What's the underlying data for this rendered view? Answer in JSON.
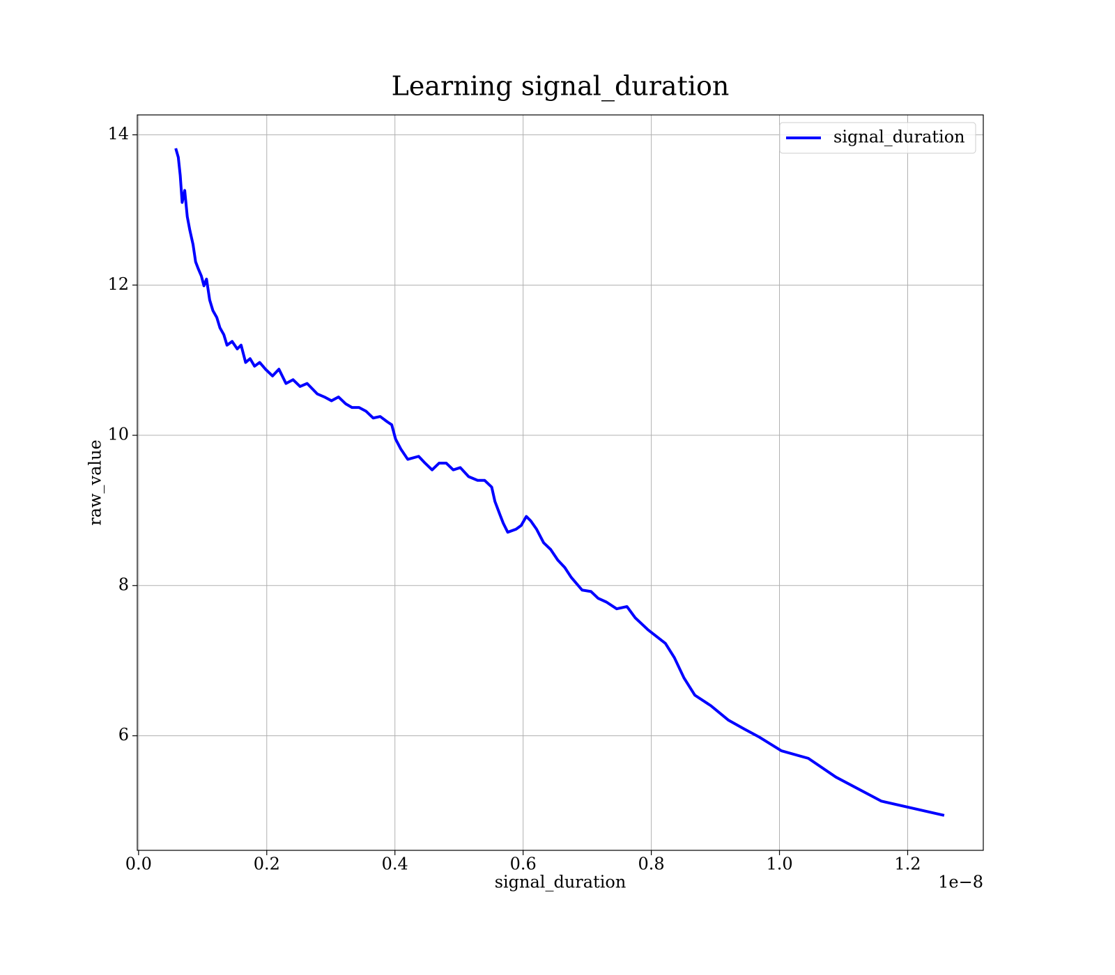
{
  "chart_data": {
    "type": "line",
    "title": "Learning signal_duration",
    "x_label": "signal_duration",
    "y_label": "raw_value",
    "x_offset_label": "1e−8",
    "xlim": [
      -0.002,
      1.318
    ],
    "ylim": [
      4.475,
      14.265
    ],
    "xticks": [
      {
        "value": 0,
        "label": "0.0"
      },
      0.2,
      0.4,
      0.6,
      0.8,
      {
        "value": 1,
        "label": "1.0"
      },
      1.2
    ],
    "yticks": [
      6,
      8,
      10,
      12,
      14
    ],
    "grid": true,
    "legend": "upper right",
    "x": [
      0.058,
      0.062,
      0.065,
      0.068,
      0.072,
      0.076,
      0.08,
      0.085,
      0.089,
      0.093,
      0.098,
      0.102,
      0.106,
      0.111,
      0.116,
      0.122,
      0.127,
      0.133,
      0.138,
      0.146,
      0.154,
      0.16,
      0.167,
      0.174,
      0.181,
      0.189,
      0.198,
      0.209,
      0.219,
      0.23,
      0.241,
      0.252,
      0.263,
      0.279,
      0.29,
      0.301,
      0.312,
      0.323,
      0.333,
      0.344,
      0.355,
      0.366,
      0.377,
      0.388,
      0.395,
      0.401,
      0.409,
      0.42,
      0.437,
      0.447,
      0.458,
      0.469,
      0.48,
      0.491,
      0.502,
      0.515,
      0.529,
      0.54,
      0.551,
      0.556,
      0.564,
      0.569,
      0.576,
      0.589,
      0.597,
      0.605,
      0.612,
      0.621,
      0.632,
      0.643,
      0.654,
      0.665,
      0.675,
      0.692,
      0.706,
      0.717,
      0.73,
      0.746,
      0.762,
      0.775,
      0.795,
      0.822,
      0.836,
      0.851,
      0.868,
      0.893,
      0.92,
      0.945,
      0.969,
      1.003,
      1.045,
      1.088,
      1.159,
      1.257
    ],
    "series": [
      {
        "name": "signal_duration",
        "color": "#0000ff",
        "values": [
          13.82,
          13.7,
          13.46,
          13.1,
          13.26,
          12.91,
          12.73,
          12.54,
          12.31,
          12.22,
          12.12,
          11.99,
          12.08,
          11.8,
          11.66,
          11.57,
          11.43,
          11.34,
          11.2,
          11.25,
          11.15,
          11.2,
          10.97,
          11.02,
          10.92,
          10.97,
          10.88,
          10.79,
          10.88,
          10.69,
          10.74,
          10.65,
          10.69,
          10.55,
          10.51,
          10.46,
          10.51,
          10.42,
          10.37,
          10.37,
          10.32,
          10.23,
          10.25,
          10.18,
          10.14,
          9.95,
          9.82,
          9.68,
          9.72,
          9.63,
          9.54,
          9.63,
          9.63,
          9.54,
          9.57,
          9.45,
          9.4,
          9.4,
          9.31,
          9.12,
          8.94,
          8.83,
          8.71,
          8.75,
          8.8,
          8.92,
          8.86,
          8.75,
          8.57,
          8.48,
          8.34,
          8.24,
          8.11,
          7.94,
          7.92,
          7.83,
          7.78,
          7.69,
          7.72,
          7.57,
          7.41,
          7.23,
          7.04,
          6.77,
          6.54,
          6.4,
          6.21,
          6.09,
          5.98,
          5.8,
          5.7,
          5.45,
          5.13,
          4.94
        ]
      }
    ]
  }
}
